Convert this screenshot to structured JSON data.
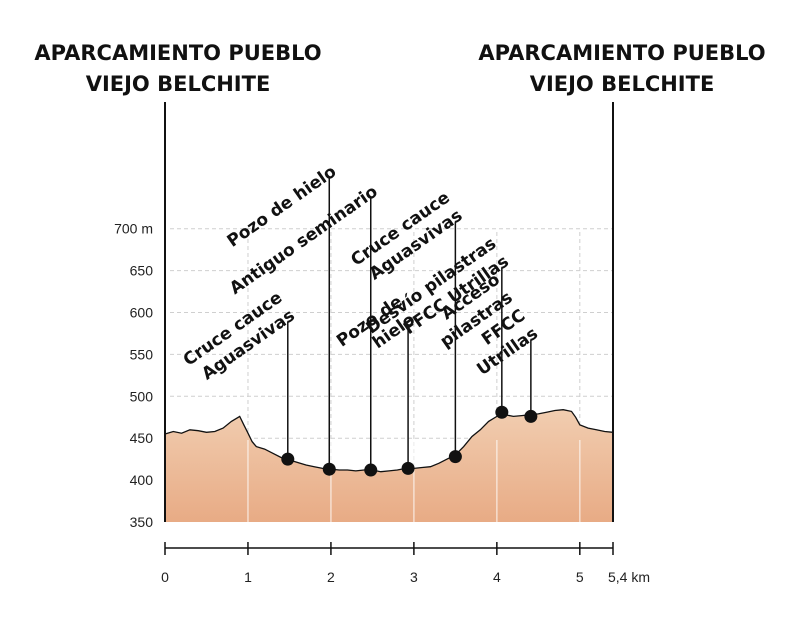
{
  "chart_data": {
    "type": "area",
    "title": "",
    "xlabel": "",
    "ylabel": "",
    "xlim": [
      0,
      5.4
    ],
    "ylim": [
      350,
      710
    ],
    "y_ticks": [
      "350",
      "400",
      "450",
      "500",
      "550",
      "600",
      "650",
      "700 m"
    ],
    "x_ticks": [
      "0",
      "1",
      "2",
      "3",
      "4",
      "5",
      "5,4 km"
    ],
    "grid": true,
    "colors": {
      "fill_top": "#f1cdb0",
      "fill_bottom": "#e8ab85",
      "line": "#111111",
      "grid": "#cfcfcf"
    },
    "start_label": [
      "APARCAMIENTO PUEBLO",
      "VIEJO BELCHITE"
    ],
    "end_label": [
      "APARCAMIENTO PUEBLO",
      "VIEJO BELCHITE"
    ],
    "profile": {
      "x": [
        0,
        0.1,
        0.2,
        0.3,
        0.4,
        0.5,
        0.6,
        0.7,
        0.8,
        0.9,
        0.95,
        1.0,
        1.05,
        1.1,
        1.2,
        1.3,
        1.4,
        1.5,
        1.6,
        1.7,
        1.8,
        1.9,
        2.0,
        2.1,
        2.2,
        2.3,
        2.4,
        2.5,
        2.6,
        2.7,
        2.8,
        2.9,
        3.0,
        3.1,
        3.2,
        3.3,
        3.4,
        3.5,
        3.6,
        3.7,
        3.8,
        3.9,
        4.0,
        4.05,
        4.1,
        4.2,
        4.3,
        4.4,
        4.5,
        4.6,
        4.7,
        4.8,
        4.9,
        4.95,
        5.0,
        5.1,
        5.2,
        5.3,
        5.4
      ],
      "y": [
        455,
        458,
        456,
        460,
        459,
        457,
        458,
        462,
        470,
        476,
        466,
        456,
        446,
        440,
        437,
        432,
        427,
        424,
        421,
        418,
        416,
        414,
        413,
        412,
        412,
        411,
        412,
        412,
        410,
        411,
        412,
        414,
        414,
        415,
        416,
        420,
        425,
        430,
        440,
        452,
        460,
        470,
        476,
        480,
        478,
        476,
        477,
        478,
        479,
        481,
        483,
        484,
        482,
        475,
        466,
        462,
        460,
        458,
        457
      ]
    },
    "points_of_interest": [
      {
        "label": [
          "Cruce cauce",
          "Aguasvivas"
        ],
        "x": 1.48,
        "y": 425
      },
      {
        "label": [
          "Pozo de hielo"
        ],
        "x": 1.98,
        "y": 413
      },
      {
        "label": [
          "Antiguo seminario"
        ],
        "x": 2.48,
        "y": 412
      },
      {
        "label": [
          "Pozo de",
          "hielo"
        ],
        "x": 2.93,
        "y": 414
      },
      {
        "label": [
          "Cruce cauce",
          "Aguasvivas"
        ],
        "x": 3.5,
        "y": 428
      },
      {
        "label": [
          "Desvío pilastras",
          "FFCC Utrillas"
        ],
        "x": 4.06,
        "y": 481
      },
      {
        "label": [
          "Acceso",
          "pilastras",
          "FFCC",
          "Utrillas"
        ],
        "x": 4.41,
        "y": 476
      }
    ]
  }
}
